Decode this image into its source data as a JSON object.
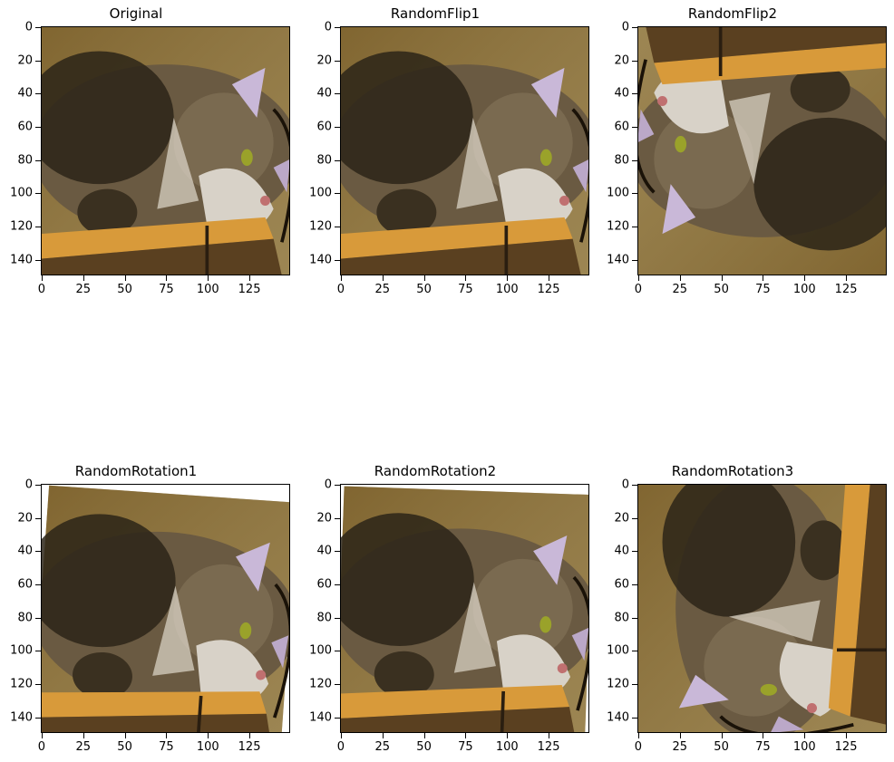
{
  "figure": {
    "panels": [
      {
        "title": "Original",
        "variant": "orig"
      },
      {
        "title": "RandomFlip1",
        "variant": "orig"
      },
      {
        "title": "RandomFlip2",
        "variant": "flipxy"
      },
      {
        "title": "RandomRotation1",
        "variant": "rot1"
      },
      {
        "title": "RandomRotation2",
        "variant": "rot2"
      },
      {
        "title": "RandomRotation3",
        "variant": "rot3"
      }
    ],
    "image_extent": [
      0,
      150
    ],
    "x_ticks": [
      "0",
      "25",
      "50",
      "75",
      "100",
      "125"
    ],
    "y_ticks": [
      "0",
      "20",
      "40",
      "60",
      "80",
      "100",
      "120",
      "140"
    ],
    "colors": {
      "wall": "#8a6f3a",
      "fur_dark": "#2b2418",
      "fur_mid": "#6a5a42",
      "fur_light": "#d8d2c8",
      "board": "#d89a3a",
      "ear": "#c9b8d8",
      "eye": "#9aa22a"
    }
  }
}
